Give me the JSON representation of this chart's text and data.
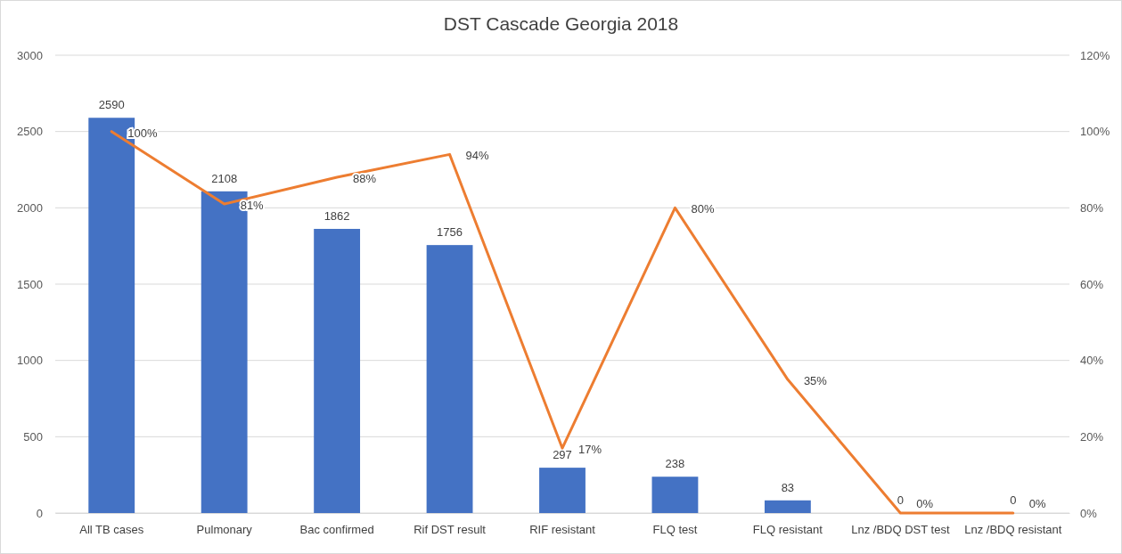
{
  "chart_data": {
    "type": "bar",
    "title": "DST Cascade Georgia 2018",
    "categories": [
      "All TB cases",
      "Pulmonary",
      "Bac confirmed",
      "Rif DST result",
      "RIF resistant",
      "FLQ test",
      "FLQ resistant",
      "Lnz /BDQ DST test",
      "Lnz /BDQ resistant"
    ],
    "series": [
      {
        "type": "bar",
        "color": "#4472c4",
        "values": [
          2590,
          2108,
          1862,
          1756,
          297,
          238,
          83,
          0,
          0
        ],
        "value_labels": [
          "2590",
          "2108",
          "1862",
          "1756",
          "297",
          "238",
          "83",
          "0",
          "0"
        ]
      },
      {
        "type": "line",
        "axis": "y2",
        "color": "#ed7d31",
        "values": [
          100,
          81,
          88,
          94,
          17,
          80,
          35,
          0,
          0
        ],
        "value_labels": [
          "100%",
          "81%",
          "88%",
          "94%",
          "17%",
          "80%",
          "35%",
          "0%",
          "0%"
        ]
      }
    ],
    "ylim": [
      0,
      3000
    ],
    "yticks": [
      0,
      500,
      1000,
      1500,
      2000,
      2500,
      3000
    ],
    "y2lim": [
      0,
      120
    ],
    "y2ticks": [
      {
        "value": 0,
        "label": "0%"
      },
      {
        "value": 20,
        "label": "20%"
      },
      {
        "value": 40,
        "label": "40%"
      },
      {
        "value": 60,
        "label": "60%"
      },
      {
        "value": 80,
        "label": "80%"
      },
      {
        "value": 100,
        "label": "100%"
      },
      {
        "value": 120,
        "label": "120%"
      }
    ],
    "grid": "y",
    "marker": "none",
    "line_style": "solid"
  }
}
